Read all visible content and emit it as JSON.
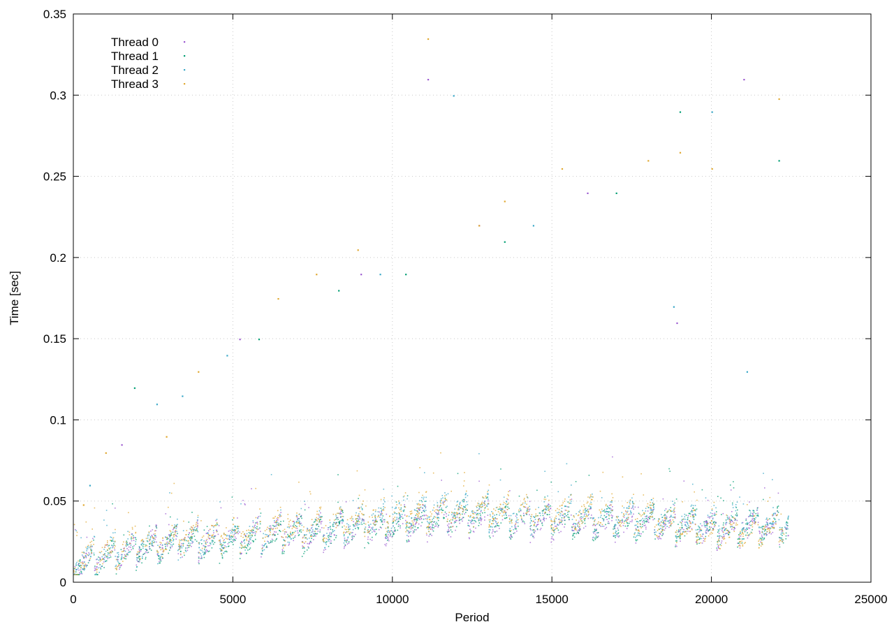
{
  "chart_data": {
    "type": "scatter",
    "title": "",
    "xlabel": "Period",
    "ylabel": "Time [sec]",
    "xlim": [
      0,
      25000
    ],
    "ylim": [
      0,
      0.35
    ],
    "x_ticks": [
      0,
      5000,
      10000,
      15000,
      20000,
      25000
    ],
    "y_ticks": [
      0,
      0.05,
      0.1,
      0.15,
      0.2,
      0.25,
      0.3,
      0.35
    ],
    "x_tick_labels": [
      "0",
      "5000",
      "10000",
      "15000",
      "20000",
      "25000"
    ],
    "y_tick_labels": [
      "0",
      "0.05",
      "0.1",
      "0.15",
      "0.2",
      "0.25",
      "0.3",
      "0.35"
    ],
    "grid": true,
    "legend_position": "top-left",
    "series": [
      {
        "name": "Thread 0",
        "color": "#9b59d0",
        "baseline": [
          [
            0,
            0.012
          ],
          [
            2000,
            0.022
          ],
          [
            5000,
            0.028
          ],
          [
            8000,
            0.032
          ],
          [
            10000,
            0.035
          ],
          [
            12000,
            0.04
          ],
          [
            15000,
            0.038
          ],
          [
            18000,
            0.036
          ],
          [
            20000,
            0.033
          ],
          [
            22400,
            0.034
          ]
        ],
        "outliers": [
          [
            1500,
            0.085
          ],
          [
            5200,
            0.15
          ],
          [
            9000,
            0.19
          ],
          [
            11100,
            0.31
          ],
          [
            12700,
            0.22
          ],
          [
            16100,
            0.24
          ],
          [
            18900,
            0.16
          ],
          [
            21000,
            0.31
          ]
        ]
      },
      {
        "name": "Thread 1",
        "color": "#009e73",
        "baseline": [
          [
            0,
            0.011
          ],
          [
            2000,
            0.021
          ],
          [
            5000,
            0.026
          ],
          [
            8000,
            0.031
          ],
          [
            10000,
            0.036
          ],
          [
            12000,
            0.041
          ],
          [
            15000,
            0.039
          ],
          [
            18000,
            0.037
          ],
          [
            20000,
            0.034
          ],
          [
            22400,
            0.035
          ]
        ],
        "outliers": [
          [
            1900,
            0.12
          ],
          [
            5800,
            0.15
          ],
          [
            8300,
            0.18
          ],
          [
            10400,
            0.19
          ],
          [
            13500,
            0.21
          ],
          [
            17000,
            0.24
          ],
          [
            19000,
            0.29
          ],
          [
            22100,
            0.26
          ]
        ]
      },
      {
        "name": "Thread 2",
        "color": "#3aa8c8",
        "baseline": [
          [
            0,
            0.012
          ],
          [
            2000,
            0.023
          ],
          [
            5000,
            0.029
          ],
          [
            8000,
            0.034
          ],
          [
            10000,
            0.04
          ],
          [
            12000,
            0.045
          ],
          [
            15000,
            0.042
          ],
          [
            18000,
            0.04
          ],
          [
            20000,
            0.036
          ],
          [
            22400,
            0.037
          ]
        ],
        "outliers": [
          [
            500,
            0.06
          ],
          [
            2600,
            0.11
          ],
          [
            3400,
            0.115
          ],
          [
            4800,
            0.14
          ],
          [
            9600,
            0.19
          ],
          [
            11900,
            0.3
          ],
          [
            14400,
            0.22
          ],
          [
            18800,
            0.17
          ],
          [
            20000,
            0.29
          ],
          [
            21100,
            0.13
          ]
        ]
      },
      {
        "name": "Thread 3",
        "color": "#e0a830",
        "baseline": [
          [
            0,
            0.013
          ],
          [
            2000,
            0.024
          ],
          [
            5000,
            0.031
          ],
          [
            8000,
            0.036
          ],
          [
            10000,
            0.042
          ],
          [
            12000,
            0.044
          ],
          [
            15000,
            0.043
          ],
          [
            18000,
            0.041
          ],
          [
            20000,
            0.03
          ],
          [
            22400,
            0.036
          ]
        ],
        "outliers": [
          [
            300,
            0.048
          ],
          [
            1000,
            0.08
          ],
          [
            2900,
            0.09
          ],
          [
            3900,
            0.13
          ],
          [
            6400,
            0.175
          ],
          [
            7600,
            0.19
          ],
          [
            8900,
            0.205
          ],
          [
            11100,
            0.335
          ],
          [
            12700,
            0.22
          ],
          [
            13500,
            0.235
          ],
          [
            15300,
            0.255
          ],
          [
            18000,
            0.26
          ],
          [
            19000,
            0.265
          ],
          [
            20000,
            0.255
          ],
          [
            22100,
            0.298
          ]
        ]
      }
    ]
  }
}
